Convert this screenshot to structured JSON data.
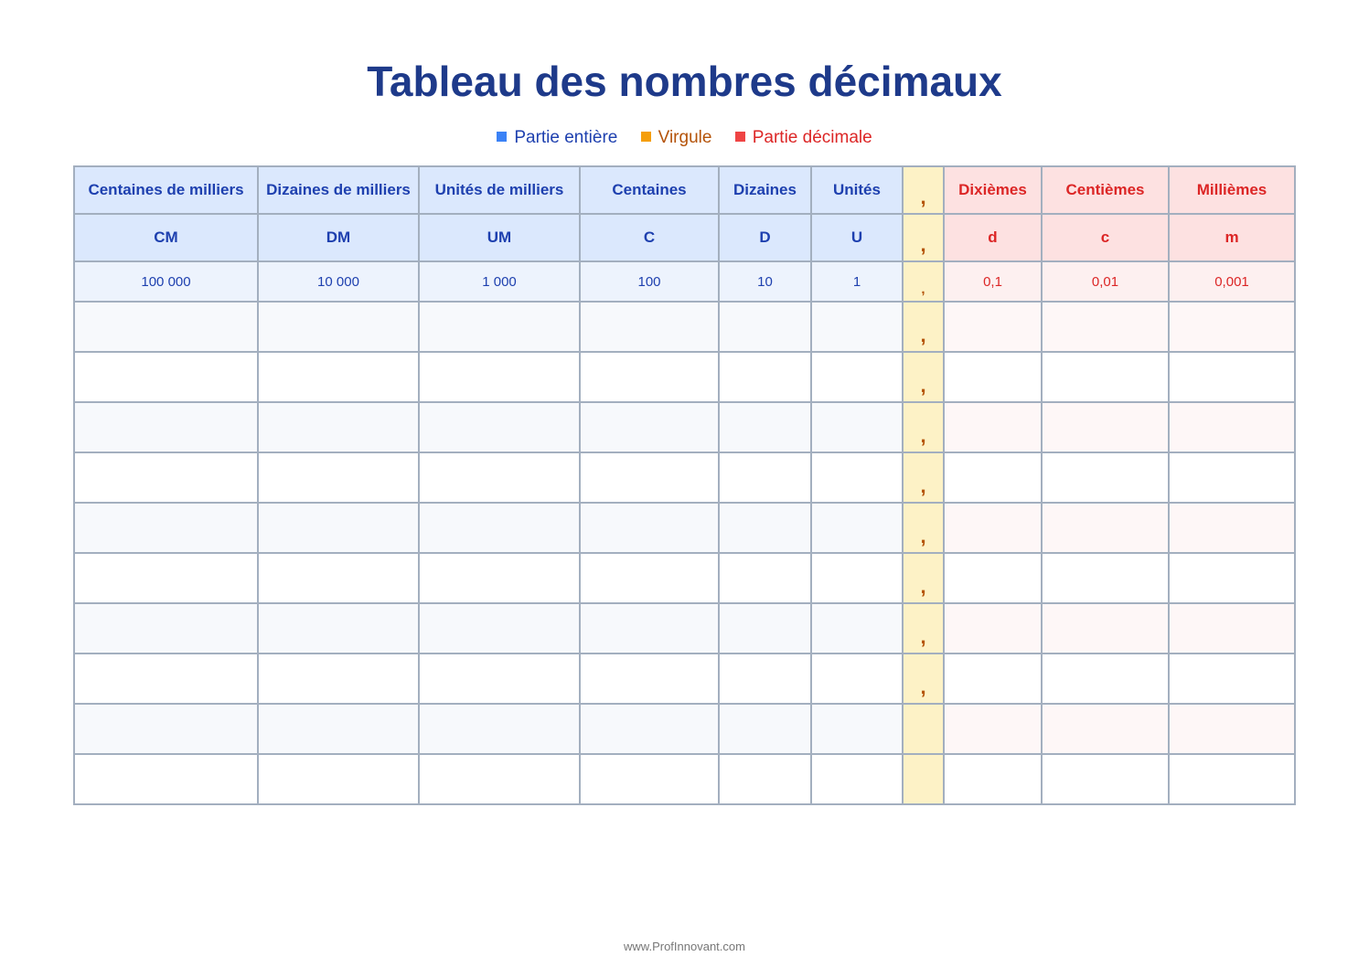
{
  "title": "Tableau des nombres décimaux",
  "legend": [
    {
      "label": "Partie entière",
      "color": "#3b82f6"
    },
    {
      "label": "Virgule",
      "color": "#f59e0b"
    },
    {
      "label": "Partie décimale",
      "color": "#ef4444"
    }
  ],
  "table": {
    "names": [
      "Centaines de milliers",
      "Dizaines de milliers",
      "Unités de milliers",
      "Centaines",
      "Dizaines",
      "Unités",
      ",",
      "Dixièmes",
      "Centièmes",
      "Millièmes"
    ],
    "abbrev": [
      "CM",
      "DM",
      "UM",
      "C",
      "D",
      "U",
      ",",
      "d",
      "c",
      "m"
    ],
    "values": [
      "100 000",
      "10 000",
      "1 000",
      "100",
      "10",
      "1",
      ",",
      "0,1",
      "0,01",
      "0,001"
    ],
    "empty_rows_with_comma": 8,
    "empty_rows_without_comma": 2,
    "comma": ","
  },
  "footer": "www.ProfInnovant.com"
}
